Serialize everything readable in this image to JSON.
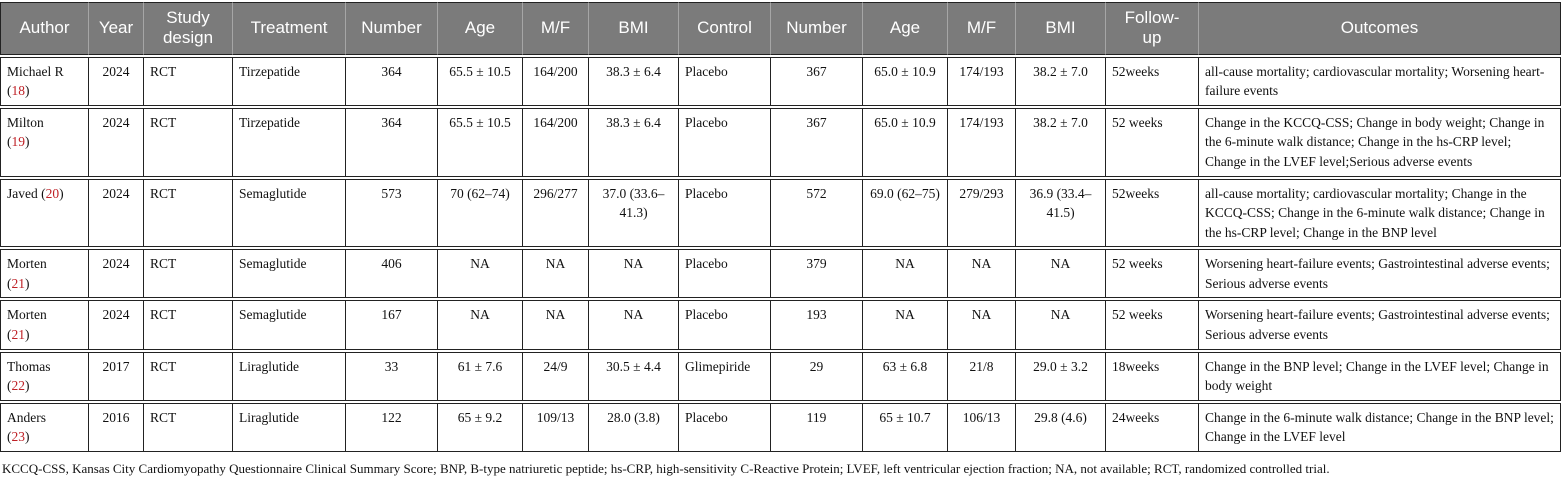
{
  "colors": {
    "header_bg": "#7b7b7b",
    "header_text": "#ffffff",
    "ref_red": "#bf2026",
    "border": "#222222"
  },
  "table": {
    "columns": [
      {
        "key": "author",
        "label": "Author"
      },
      {
        "key": "year",
        "label": "Year"
      },
      {
        "key": "study_design",
        "label": "Study design"
      },
      {
        "key": "treatment",
        "label": "Treatment"
      },
      {
        "key": "t_number",
        "label": "Number"
      },
      {
        "key": "t_age",
        "label": "Age"
      },
      {
        "key": "t_mf",
        "label": "M/F"
      },
      {
        "key": "t_bmi",
        "label": "BMI"
      },
      {
        "key": "control",
        "label": "Control"
      },
      {
        "key": "c_number",
        "label": "Number"
      },
      {
        "key": "c_age",
        "label": "Age"
      },
      {
        "key": "c_mf",
        "label": "M/F"
      },
      {
        "key": "c_bmi",
        "label": "BMI"
      },
      {
        "key": "follow_up",
        "label": "Follow-up"
      },
      {
        "key": "outcomes",
        "label": "Outcomes"
      }
    ],
    "rows": [
      {
        "author": {
          "name": "Michael R",
          "ref": "18",
          "ref_same_line": false
        },
        "year": "2024",
        "study_design": "RCT",
        "treatment": "Tirzepatide",
        "t_number": "364",
        "t_age": "65.5 ± 10.5",
        "t_mf": "164/200",
        "t_bmi": "38.3 ± 6.4",
        "control": "Placebo",
        "c_number": "367",
        "c_age": "65.0 ± 10.9",
        "c_mf": "174/193",
        "c_bmi": "38.2 ± 7.0",
        "follow_up": "52weeks",
        "outcomes": "all-cause mortality; cardiovascular mortality; Worsening heart-failure events"
      },
      {
        "author": {
          "name": "Milton",
          "ref": "19",
          "ref_same_line": false
        },
        "year": "2024",
        "study_design": "RCT",
        "treatment": "Tirzepatide",
        "t_number": "364",
        "t_age": "65.5 ± 10.5",
        "t_mf": "164/200",
        "t_bmi": "38.3 ± 6.4",
        "control": "Placebo",
        "c_number": "367",
        "c_age": "65.0 ± 10.9",
        "c_mf": "174/193",
        "c_bmi": "38.2 ± 7.0",
        "follow_up": "52 weeks",
        "outcomes": "Change in the KCCQ-CSS; Change in body weight; Change in the 6-minute walk distance; Change in the hs-CRP level; Change in the LVEF level;Serious adverse events"
      },
      {
        "author": {
          "name": "Javed",
          "ref": "20",
          "ref_same_line": true
        },
        "year": "2024",
        "study_design": "RCT",
        "treatment": "Semaglutide",
        "t_number": "573",
        "t_age": "70 (62–74)",
        "t_mf": "296/277",
        "t_bmi": "37.0 (33.6–41.3)",
        "control": "Placebo",
        "c_number": "572",
        "c_age": "69.0 (62–75)",
        "c_mf": "279/293",
        "c_bmi": "36.9 (33.4–41.5)",
        "follow_up": "52weeks",
        "outcomes": "all-cause mortality; cardiovascular mortality; Change in the KCCQ-CSS; Change in the 6-minute walk distance; Change in the hs-CRP level; Change in the BNP level"
      },
      {
        "author": {
          "name": "Morten",
          "ref": "21",
          "ref_same_line": false
        },
        "year": "2024",
        "study_design": "RCT",
        "treatment": "Semaglutide",
        "t_number": "406",
        "t_age": "NA",
        "t_mf": "NA",
        "t_bmi": "NA",
        "control": "Placebo",
        "c_number": "379",
        "c_age": "NA",
        "c_mf": "NA",
        "c_bmi": "NA",
        "follow_up": "52 weeks",
        "outcomes": "Worsening heart-failure events; Gastrointestinal adverse events; Serious adverse events"
      },
      {
        "author": {
          "name": "Morten",
          "ref": "21",
          "ref_same_line": false
        },
        "year": "2024",
        "study_design": "RCT",
        "treatment": "Semaglutide",
        "t_number": "167",
        "t_age": "NA",
        "t_mf": "NA",
        "t_bmi": "NA",
        "control": "Placebo",
        "c_number": "193",
        "c_age": "NA",
        "c_mf": "NA",
        "c_bmi": "NA",
        "follow_up": "52 weeks",
        "outcomes": "Worsening heart-failure events; Gastrointestinal adverse events; Serious adverse events"
      },
      {
        "author": {
          "name": "Thomas",
          "ref": "22",
          "ref_same_line": false
        },
        "year": "2017",
        "study_design": "RCT",
        "treatment": "Liraglutide",
        "t_number": "33",
        "t_age": "61 ± 7.6",
        "t_mf": "24/9",
        "t_bmi": "30.5 ± 4.4",
        "control": "Glimepiride",
        "c_number": "29",
        "c_age": "63 ± 6.8",
        "c_mf": "21/8",
        "c_bmi": "29.0 ± 3.2",
        "follow_up": "18weeks",
        "outcomes": "Change in the BNP level; Change in the LVEF level; Change in body weight"
      },
      {
        "author": {
          "name": "Anders",
          "ref": "23",
          "ref_same_line": false
        },
        "year": "2016",
        "study_design": "RCT",
        "treatment": "Liraglutide",
        "t_number": "122",
        "t_age": "65 ± 9.2",
        "t_mf": "109/13",
        "t_bmi": "28.0 (3.8)",
        "control": "Placebo",
        "c_number": "119",
        "c_age": "65 ± 10.7",
        "c_mf": "106/13",
        "c_bmi": "29.8 (4.6)",
        "follow_up": "24weeks",
        "outcomes": "Change in the 6-minute walk distance; Change in the BNP level; Change in the LVEF level"
      }
    ]
  },
  "footnote": "KCCQ-CSS, Kansas City Cardiomyopathy Questionnaire Clinical Summary Score; BNP, B-type natriuretic peptide; hs-CRP, high-sensitivity C-Reactive Protein; LVEF, left ventricular ejection fraction; NA, not available; RCT, randomized controlled trial."
}
